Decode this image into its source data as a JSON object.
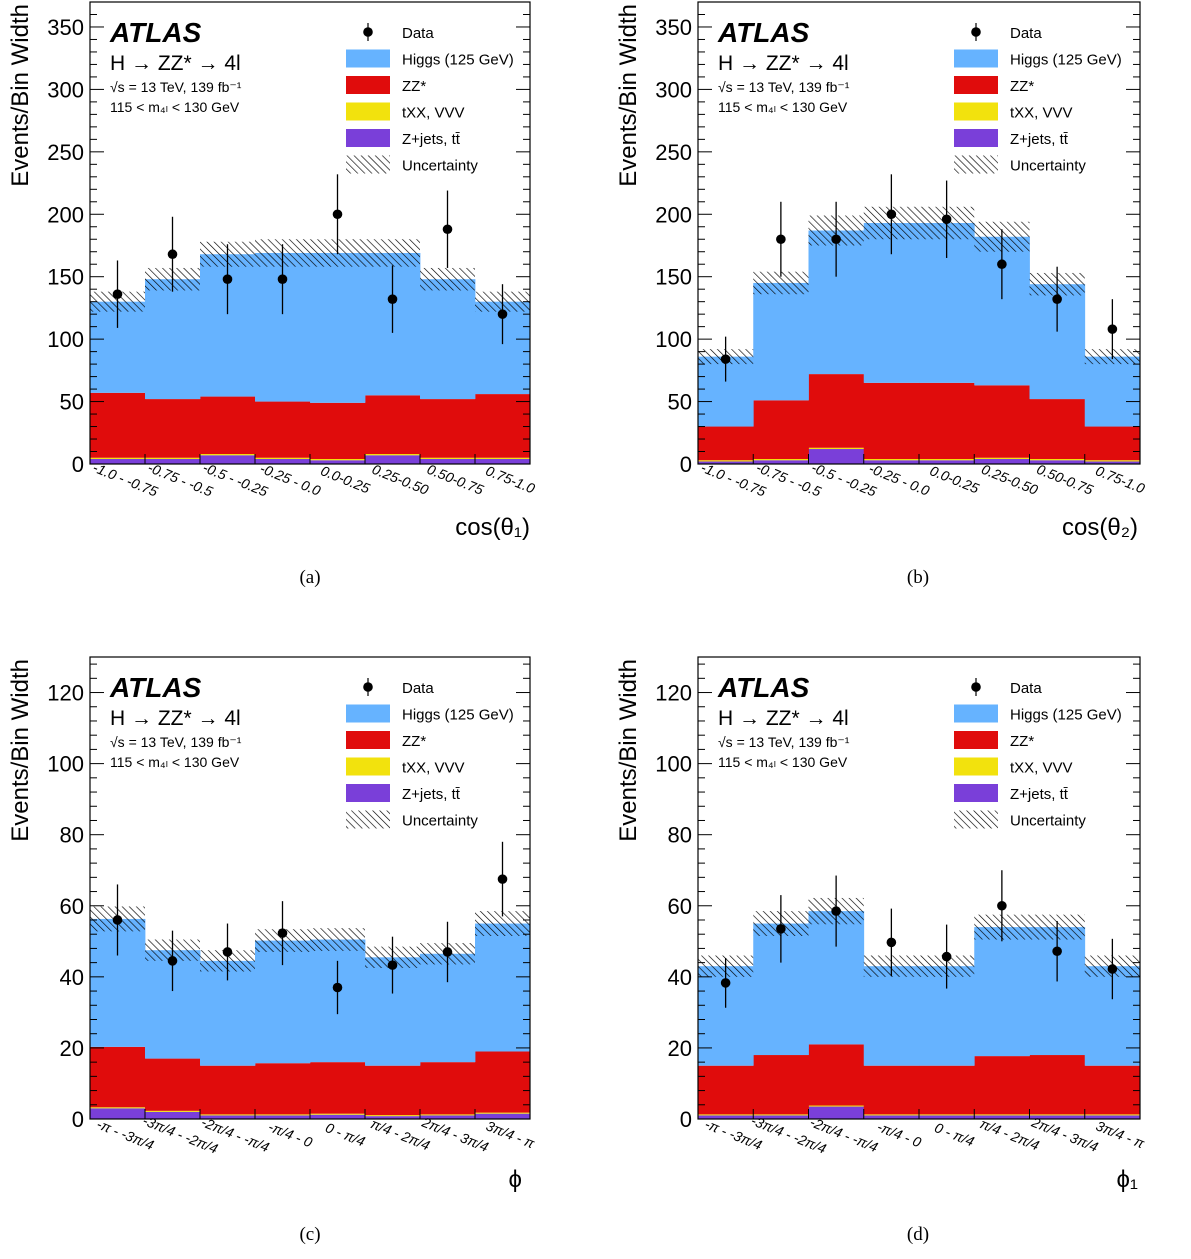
{
  "legend": {
    "experiment": "ATLAS",
    "process": "H → ZZ* → 4l",
    "energy_lumi": "√s = 13 TeV, 139 fb⁻¹",
    "mass_window": "115 < m₄ₗ < 130 GeV",
    "entries": [
      {
        "key": "data",
        "label": "Data"
      },
      {
        "key": "higgs",
        "label": "Higgs (125 GeV)"
      },
      {
        "key": "zz",
        "label": "ZZ*"
      },
      {
        "key": "txx",
        "label": "tXX, VVV"
      },
      {
        "key": "zjets",
        "label": "Z+jets, tt̄"
      },
      {
        "key": "unc",
        "label": "Uncertainty"
      }
    ]
  },
  "colors": {
    "higgs": "#66b3ff",
    "zz": "#e00c0c",
    "txx": "#f2e20d",
    "zjets": "#7a3fd9",
    "data": "#000000"
  },
  "chart_data": [
    {
      "id": "a",
      "type": "bar",
      "stacked": true,
      "caption": "(a)",
      "ylabel": "Events/Bin Width",
      "xlabel": "cos(θ₁)",
      "ylim": [
        0,
        370
      ],
      "yticks": [
        0,
        50,
        100,
        150,
        200,
        250,
        300,
        350
      ],
      "categories": [
        "-1.0 - -0.75",
        "-0.75 - -0.5",
        "-0.5 - -0.25",
        "-0.25 - 0.0",
        "0.0-0.25",
        "0.25-0.50",
        "0.50-0.75",
        "0.75-1.0"
      ],
      "series": [
        {
          "name": "Z+jets, tt̄",
          "key": "zjets",
          "values": [
            4,
            4,
            7,
            4,
            3,
            7,
            4,
            4
          ]
        },
        {
          "name": "tXX, VVV",
          "key": "txx",
          "values": [
            1,
            1,
            1,
            1,
            1,
            1,
            1,
            1
          ]
        },
        {
          "name": "ZZ*",
          "key": "zz",
          "values": [
            52,
            47,
            46,
            45,
            45,
            47,
            47,
            51
          ]
        },
        {
          "name": "Higgs (125 GeV)",
          "key": "higgs",
          "values": [
            73,
            96,
            114,
            119,
            120,
            114,
            96,
            74
          ]
        }
      ],
      "total": [
        130,
        148,
        168,
        169,
        169,
        169,
        148,
        130
      ],
      "uncertainty": [
        8,
        9,
        10,
        11,
        11,
        11,
        9,
        8
      ],
      "data": {
        "values": [
          136,
          168,
          148,
          148,
          200,
          132,
          188,
          120
        ],
        "errors": [
          27,
          30,
          28,
          28,
          32,
          27,
          31,
          24
        ]
      }
    },
    {
      "id": "b",
      "type": "bar",
      "stacked": true,
      "caption": "(b)",
      "ylabel": "Events/Bin Width",
      "xlabel": "cos(θ₂)",
      "ylim": [
        0,
        370
      ],
      "yticks": [
        0,
        50,
        100,
        150,
        200,
        250,
        300,
        350
      ],
      "categories": [
        "-1.0 - -0.75",
        "-0.75 - -0.5",
        "-0.5 - -0.25",
        "-0.25 - 0.0",
        "0.0-0.25",
        "0.25-0.50",
        "0.50-0.75",
        "0.75-1.0"
      ],
      "series": [
        {
          "name": "Z+jets, tt̄",
          "key": "zjets",
          "values": [
            2,
            3,
            12,
            3,
            3,
            4,
            3,
            2
          ]
        },
        {
          "name": "tXX, VVV",
          "key": "txx",
          "values": [
            1,
            1,
            1,
            1,
            1,
            1,
            1,
            1
          ]
        },
        {
          "name": "ZZ*",
          "key": "zz",
          "values": [
            27,
            47,
            59,
            61,
            61,
            58,
            48,
            27
          ]
        },
        {
          "name": "Higgs (125 GeV)",
          "key": "higgs",
          "values": [
            56,
            94,
            115,
            128,
            128,
            119,
            92,
            56
          ]
        }
      ],
      "total": [
        86,
        145,
        187,
        193,
        193,
        182,
        144,
        86
      ],
      "uncertainty": [
        6,
        9,
        12,
        13,
        13,
        12,
        9,
        6
      ],
      "data": {
        "values": [
          84,
          180,
          180,
          200,
          196,
          160,
          132,
          108
        ],
        "errors": [
          18,
          30,
          30,
          32,
          31,
          28,
          26,
          24
        ]
      }
    },
    {
      "id": "c",
      "type": "bar",
      "stacked": true,
      "caption": "(c)",
      "ylabel": "Events/Bin Width",
      "xlabel": "ϕ",
      "ylim": [
        0,
        130
      ],
      "yticks": [
        0,
        20,
        40,
        60,
        80,
        100,
        120
      ],
      "categories": [
        "-π - -3π/4",
        "-3π/4 - -2π/4",
        "-2π/4 - -π/4",
        "-π/4 - 0",
        "0 - π/4",
        "π/4 - 2π/4",
        "2π/4 - 3π/4",
        "3π/4 - π"
      ],
      "series": [
        {
          "name": "Z+jets, tt̄",
          "key": "zjets",
          "values": [
            3,
            2,
            1,
            1,
            1.2,
            0.8,
            1,
            1.5
          ]
        },
        {
          "name": "tXX, VVV",
          "key": "txx",
          "values": [
            0.3,
            0.3,
            0.3,
            0.3,
            0.3,
            0.3,
            0.3,
            0.3
          ]
        },
        {
          "name": "ZZ*",
          "key": "zz",
          "values": [
            17,
            14.7,
            13.7,
            14.4,
            14.5,
            13.9,
            14.7,
            17.2
          ]
        },
        {
          "name": "Higgs (125 GeV)",
          "key": "higgs",
          "values": [
            36,
            30.5,
            29.5,
            34.5,
            34.5,
            30.5,
            30.5,
            36
          ]
        }
      ],
      "total": [
        56.3,
        47.5,
        44.5,
        50.2,
        50.5,
        45.5,
        46.5,
        55
      ],
      "uncertainty": [
        3.5,
        3,
        3,
        3.2,
        3.2,
        3,
        3,
        3.5
      ],
      "data": {
        "values": [
          56,
          44.5,
          47,
          52.3,
          37,
          43.3,
          47,
          67.5
        ],
        "errors": [
          10,
          8.5,
          8,
          9,
          7.5,
          8,
          8.5,
          10.5
        ]
      }
    },
    {
      "id": "d",
      "type": "bar",
      "stacked": true,
      "caption": "(d)",
      "ylabel": "Events/Bin Width",
      "xlabel": "ϕ₁",
      "ylim": [
        0,
        130
      ],
      "yticks": [
        0,
        20,
        40,
        60,
        80,
        100,
        120
      ],
      "categories": [
        "-π - -3π/4",
        "-3π/4 - -2π/4",
        "-2π/4 - -π/4",
        "-π/4 - 0",
        "0 - π/4",
        "π/4 - 2π/4",
        "2π/4 - 3π/4",
        "3π/4 - π"
      ],
      "series": [
        {
          "name": "Z+jets, tt̄",
          "key": "zjets",
          "values": [
            1,
            1,
            3.5,
            1,
            1,
            1,
            1,
            1
          ]
        },
        {
          "name": "tXX, VVV",
          "key": "txx",
          "values": [
            0.3,
            0.3,
            0.3,
            0.3,
            0.3,
            0.3,
            0.3,
            0.3
          ]
        },
        {
          "name": "ZZ*",
          "key": "zz",
          "values": [
            13.7,
            16.7,
            17.2,
            13.7,
            13.7,
            16.4,
            16.7,
            13.7
          ]
        },
        {
          "name": "Higgs (125 GeV)",
          "key": "higgs",
          "values": [
            28,
            37,
            37.5,
            28,
            28,
            36.3,
            36,
            28
          ]
        }
      ],
      "total": [
        43,
        55,
        58.5,
        43,
        43,
        54,
        54,
        43
      ],
      "uncertainty": [
        3,
        3.5,
        3.7,
        3,
        3,
        3.5,
        3.5,
        3
      ],
      "data": {
        "values": [
          38.3,
          53.5,
          58.5,
          49.7,
          45.7,
          60,
          47.2,
          42.2
        ],
        "errors": [
          7,
          9.5,
          10,
          9.5,
          9,
          10,
          8.5,
          8.5
        ]
      }
    }
  ]
}
